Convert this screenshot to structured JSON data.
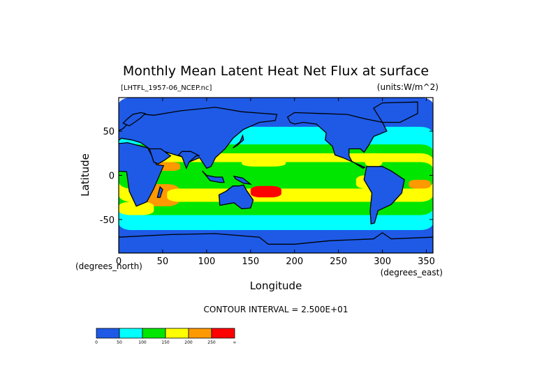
{
  "chart_data": {
    "type": "heatmap",
    "title": "Monthly Mean Latent Heat Net Flux at surface",
    "source_file": "[LHTFL_1957-06_NCEP.nc]",
    "units_label": "(units:W/m^2)",
    "xlabel": "Longitude",
    "ylabel": "Latitude",
    "x_unit_label": "(degrees_east)",
    "y_unit_label": "(degrees_north)",
    "xlim": [
      0,
      357.5
    ],
    "ylim": [
      -88,
      88
    ],
    "x_ticks": [
      0,
      50,
      100,
      150,
      200,
      250,
      300,
      350
    ],
    "y_ticks": [
      -50,
      0,
      50
    ],
    "contour_interval_text": "CONTOUR INTERVAL = 2.500E+01",
    "contour_interval": 25,
    "colorbar": {
      "bins": [
        {
          "from": 0,
          "to": 50,
          "color": "#1e5ae6"
        },
        {
          "from": 50,
          "to": 100,
          "color": "#00ffff"
        },
        {
          "from": 100,
          "to": 150,
          "color": "#00e600"
        },
        {
          "from": 150,
          "to": 200,
          "color": "#ffff00"
        },
        {
          "from": 200,
          "to": 250,
          "color": "#ff9900"
        },
        {
          "from": 250,
          "to": 300,
          "color": "#ff0000"
        }
      ],
      "tick_labels": [
        "0",
        "50",
        "100",
        "150",
        "200",
        "250",
        "∞"
      ]
    },
    "field_regions": [
      {
        "lon": [
          0,
          357.5
        ],
        "lat": [
          -88,
          88
        ],
        "value": 40
      },
      {
        "lon": [
          0,
          357.5
        ],
        "lat": [
          -62,
          55
        ],
        "value": 70
      },
      {
        "lon": [
          0,
          357.5
        ],
        "lat": [
          -45,
          35
        ],
        "value": 120
      },
      {
        "lon": [
          0,
          357.5
        ],
        "lat": [
          -30,
          25
        ],
        "value": 160
      },
      {
        "lon": [
          0,
          357.5
        ],
        "lat": [
          -15,
          15
        ],
        "value": 130
      },
      {
        "lon": [
          20,
          70
        ],
        "lat": [
          -35,
          -10
        ],
        "value": 210
      },
      {
        "lon": [
          55,
          100
        ],
        "lat": [
          -30,
          -15
        ],
        "value": 180
      },
      {
        "lon": [
          40,
          70
        ],
        "lat": [
          5,
          15
        ],
        "value": 210
      },
      {
        "lon": [
          140,
          190
        ],
        "lat": [
          10,
          20
        ],
        "value": 190
      },
      {
        "lon": [
          150,
          185
        ],
        "lat": [
          -25,
          -12
        ],
        "value": 260
      },
      {
        "lon": [
          160,
          180
        ],
        "lat": [
          -22,
          -15
        ],
        "value": 290
      },
      {
        "lon": [
          200,
          250
        ],
        "lat": [
          -30,
          -15
        ],
        "value": 185
      },
      {
        "lon": [
          270,
          300
        ],
        "lat": [
          -15,
          0
        ],
        "value": 170
      },
      {
        "lon": [
          330,
          355
        ],
        "lat": [
          -15,
          -5
        ],
        "value": 220
      },
      {
        "lon": [
          0,
          40
        ],
        "lat": [
          -45,
          -30
        ],
        "value": 170
      },
      {
        "lon": [
          280,
          300
        ],
        "lat": [
          10,
          25
        ],
        "value": 150
      }
    ],
    "land_regions": [
      {
        "name": "Africa",
        "outline": [
          [
            -17,
            21
          ],
          [
            -10,
            35
          ],
          [
            10,
            37
          ],
          [
            33,
            31
          ],
          [
            43,
            12
          ],
          [
            51,
            11
          ],
          [
            40,
            -15
          ],
          [
            32,
            -30
          ],
          [
            20,
            -35
          ],
          [
            12,
            -18
          ],
          [
            9,
            4
          ],
          [
            -5,
            5
          ],
          [
            -17,
            15
          ]
        ]
      },
      {
        "name": "Eurasia",
        "outline": [
          [
            -10,
            36
          ],
          [
            -9,
            44
          ],
          [
            -5,
            48
          ],
          [
            5,
            53
          ],
          [
            10,
            58
          ],
          [
            20,
            70
          ],
          [
            40,
            68
          ],
          [
            70,
            73
          ],
          [
            110,
            77
          ],
          [
            140,
            72
          ],
          [
            180,
            69
          ],
          [
            178,
            62
          ],
          [
            160,
            60
          ],
          [
            142,
            52
          ],
          [
            130,
            42
          ],
          [
            121,
            30
          ],
          [
            110,
            20
          ],
          [
            105,
            10
          ],
          [
            100,
            8
          ],
          [
            92,
            20
          ],
          [
            80,
            15
          ],
          [
            72,
            21
          ],
          [
            58,
            25
          ],
          [
            52,
            27
          ],
          [
            40,
            15
          ],
          [
            35,
            30
          ],
          [
            25,
            37
          ],
          [
            15,
            40
          ],
          [
            3,
            42
          ],
          [
            -5,
            36
          ]
        ]
      },
      {
        "name": "Arabia",
        "outline": [
          [
            35,
            30
          ],
          [
            40,
            15
          ],
          [
            45,
            13
          ],
          [
            52,
            17
          ],
          [
            59,
            22
          ],
          [
            52,
            27
          ],
          [
            48,
            30
          ]
        ]
      },
      {
        "name": "India",
        "outline": [
          [
            68,
            23
          ],
          [
            72,
            21
          ],
          [
            77,
            8
          ],
          [
            80,
            15
          ],
          [
            88,
            22
          ],
          [
            92,
            22
          ],
          [
            82,
            27
          ],
          [
            72,
            27
          ]
        ]
      },
      {
        "name": "Scandinavia",
        "outline": [
          [
            5,
            59
          ],
          [
            10,
            64
          ],
          [
            16,
            69
          ],
          [
            25,
            71
          ],
          [
            30,
            70
          ],
          [
            25,
            65
          ],
          [
            18,
            60
          ],
          [
            12,
            56
          ]
        ]
      },
      {
        "name": "North America",
        "outline": [
          [
            192,
            66
          ],
          [
            200,
            71
          ],
          [
            230,
            70
          ],
          [
            260,
            69
          ],
          [
            280,
            64
          ],
          [
            300,
            60
          ],
          [
            305,
            50
          ],
          [
            290,
            44
          ],
          [
            285,
            35
          ],
          [
            279,
            26
          ],
          [
            275,
            30
          ],
          [
            262,
            30
          ],
          [
            262,
            22
          ],
          [
            265,
            16
          ],
          [
            278,
            8
          ],
          [
            280,
            9
          ],
          [
            255,
            20
          ],
          [
            246,
            23
          ],
          [
            243,
            33
          ],
          [
            235,
            40
          ],
          [
            236,
            48
          ],
          [
            225,
            58
          ],
          [
            210,
            60
          ],
          [
            200,
            58
          ],
          [
            195,
            60
          ]
        ]
      },
      {
        "name": "South America",
        "outline": [
          [
            282,
            10
          ],
          [
            300,
            10
          ],
          [
            310,
            5
          ],
          [
            325,
            -5
          ],
          [
            322,
            -20
          ],
          [
            310,
            -33
          ],
          [
            295,
            -40
          ],
          [
            291,
            -54
          ],
          [
            287,
            -55
          ],
          [
            286,
            -40
          ],
          [
            288,
            -20
          ],
          [
            279,
            -5
          ]
        ]
      },
      {
        "name": "Greenland",
        "outline": [
          [
            300,
            60
          ],
          [
            290,
            76
          ],
          [
            300,
            82
          ],
          [
            340,
            83
          ],
          [
            340,
            70
          ],
          [
            320,
            60
          ]
        ]
      },
      {
        "name": "Australia",
        "outline": [
          [
            114,
            -22
          ],
          [
            122,
            -18
          ],
          [
            130,
            -12
          ],
          [
            137,
            -12
          ],
          [
            142,
            -11
          ],
          [
            146,
            -18
          ],
          [
            153,
            -28
          ],
          [
            150,
            -37
          ],
          [
            140,
            -38
          ],
          [
            131,
            -31
          ],
          [
            115,
            -34
          ]
        ]
      },
      {
        "name": "Antarctica",
        "outline": [
          [
            0,
            -70
          ],
          [
            60,
            -67
          ],
          [
            110,
            -66
          ],
          [
            160,
            -70
          ],
          [
            170,
            -78
          ],
          [
            200,
            -78
          ],
          [
            240,
            -74
          ],
          [
            290,
            -72
          ],
          [
            300,
            -65
          ],
          [
            310,
            -72
          ],
          [
            357.5,
            -70
          ],
          [
            357.5,
            -88
          ],
          [
            0,
            -88
          ]
        ]
      },
      {
        "name": "Madagascar",
        "outline": [
          [
            44,
            -25
          ],
          [
            47,
            -13
          ],
          [
            50,
            -16
          ],
          [
            47,
            -25
          ]
        ]
      },
      {
        "name": "Japan",
        "outline": [
          [
            130,
            31
          ],
          [
            135,
            34
          ],
          [
            142,
            40
          ],
          [
            141,
            45
          ],
          [
            138,
            38
          ],
          [
            132,
            33
          ]
        ]
      },
      {
        "name": "Indonesia",
        "outline": [
          [
            95,
            5
          ],
          [
            104,
            -6
          ],
          [
            115,
            -8
          ],
          [
            120,
            -8
          ],
          [
            118,
            -2
          ],
          [
            110,
            -2
          ],
          [
            100,
            0
          ]
        ]
      },
      {
        "name": "New Guinea",
        "outline": [
          [
            131,
            -1
          ],
          [
            141,
            -3
          ],
          [
            150,
            -10
          ],
          [
            142,
            -9
          ],
          [
            133,
            -4
          ]
        ]
      }
    ]
  }
}
